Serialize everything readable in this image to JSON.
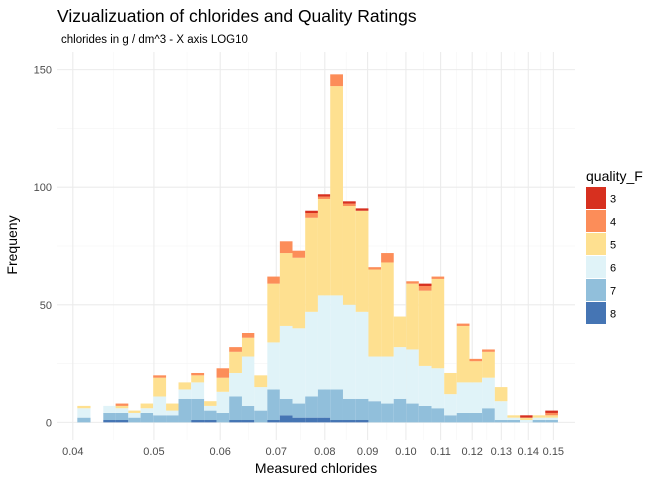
{
  "chart_data": {
    "type": "bar",
    "stacked": true,
    "title": "Vizualizuation of chlorides and Quality Ratings",
    "subtitle": "chlorides in g / dm^3 -  X axis LOG10",
    "xlabel": "Measured chlorides",
    "ylabel": "Frequeny",
    "x_scale": "log10",
    "xlim": [
      0.0383,
      0.1592
    ],
    "ylim": [
      -7.5,
      157.5
    ],
    "y_ticks": [
      0,
      50,
      100,
      150
    ],
    "x_ticks": [
      0.04,
      0.05,
      0.06,
      0.07,
      0.08,
      0.09,
      0.1,
      0.11,
      0.12,
      0.13,
      0.14,
      0.15
    ],
    "x_tick_labels": [
      "0.04",
      "0.05",
      "0.06",
      "0.07",
      "0.08",
      "0.09",
      "0.10",
      "0.11",
      "0.12",
      "0.13",
      "0.14",
      "0.15"
    ],
    "grid": true,
    "legend_title": "quality_F",
    "legend_position": "right",
    "series": [
      {
        "name": "3",
        "color": "#d7301f"
      },
      {
        "name": "4",
        "color": "#fc8d59"
      },
      {
        "name": "5",
        "color": "#fee090"
      },
      {
        "name": "6",
        "color": "#e0f3f8"
      },
      {
        "name": "7",
        "color": "#91bfdb"
      },
      {
        "name": "8",
        "color": "#4575b4"
      }
    ],
    "bins": [
      {
        "x0": 0.0405,
        "x1": 0.042,
        "counts": [
          0,
          0,
          1,
          4,
          2,
          0
        ]
      },
      {
        "x0": 0.0435,
        "x1": 0.045,
        "counts": [
          0,
          0,
          0,
          3,
          3,
          1
        ]
      },
      {
        "x0": 0.045,
        "x1": 0.0466,
        "counts": [
          0,
          1,
          1,
          2,
          3,
          1
        ]
      },
      {
        "x0": 0.0466,
        "x1": 0.0482,
        "counts": [
          0,
          0,
          1,
          2,
          2,
          0
        ]
      },
      {
        "x0": 0.0482,
        "x1": 0.0499,
        "counts": [
          0,
          0,
          2,
          2,
          4,
          0
        ]
      },
      {
        "x0": 0.0499,
        "x1": 0.0517,
        "counts": [
          0,
          1,
          8,
          8,
          3,
          0
        ]
      },
      {
        "x0": 0.0517,
        "x1": 0.0535,
        "counts": [
          0,
          0,
          3,
          2,
          3,
          0
        ]
      },
      {
        "x0": 0.0535,
        "x1": 0.0554,
        "counts": [
          0,
          0,
          3,
          4,
          10,
          0
        ]
      },
      {
        "x0": 0.0554,
        "x1": 0.0574,
        "counts": [
          0,
          1,
          3,
          7,
          9,
          1
        ]
      },
      {
        "x0": 0.0574,
        "x1": 0.0594,
        "counts": [
          0,
          0,
          2,
          2,
          4,
          1
        ]
      },
      {
        "x0": 0.0594,
        "x1": 0.0615,
        "counts": [
          0,
          4,
          6,
          9,
          4,
          0
        ]
      },
      {
        "x0": 0.0615,
        "x1": 0.0637,
        "counts": [
          0,
          2,
          9,
          10,
          10,
          1
        ]
      },
      {
        "x0": 0.0637,
        "x1": 0.0659,
        "counts": [
          0,
          2,
          8,
          21,
          6,
          1
        ]
      },
      {
        "x0": 0.0659,
        "x1": 0.0683,
        "counts": [
          0,
          0,
          5,
          10,
          5,
          0
        ]
      },
      {
        "x0": 0.0683,
        "x1": 0.0707,
        "counts": [
          0,
          3,
          25,
          20,
          13,
          1
        ]
      },
      {
        "x0": 0.0707,
        "x1": 0.0732,
        "counts": [
          0,
          5,
          31,
          31,
          7,
          3
        ]
      },
      {
        "x0": 0.0732,
        "x1": 0.0758,
        "counts": [
          0,
          3,
          30,
          32,
          6,
          2
        ]
      },
      {
        "x0": 0.0758,
        "x1": 0.0785,
        "counts": [
          1,
          2,
          40,
          36,
          9,
          2
        ]
      },
      {
        "x0": 0.0785,
        "x1": 0.0812,
        "counts": [
          1,
          1,
          41,
          40,
          12,
          2
        ]
      },
      {
        "x0": 0.0812,
        "x1": 0.0841,
        "counts": [
          0,
          5,
          89,
          40,
          13,
          1
        ]
      },
      {
        "x0": 0.0841,
        "x1": 0.0871,
        "counts": [
          1,
          1,
          42,
          40,
          9,
          1
        ]
      },
      {
        "x0": 0.0871,
        "x1": 0.0902,
        "counts": [
          1,
          0,
          43,
          37,
          9,
          1
        ]
      },
      {
        "x0": 0.0902,
        "x1": 0.0934,
        "counts": [
          0,
          1,
          37,
          19,
          9,
          0
        ]
      },
      {
        "x0": 0.0934,
        "x1": 0.0967,
        "counts": [
          0,
          4,
          40,
          20,
          8,
          0
        ]
      },
      {
        "x0": 0.0967,
        "x1": 0.1001,
        "counts": [
          0,
          0,
          13,
          22,
          10,
          0
        ]
      },
      {
        "x0": 0.1001,
        "x1": 0.1036,
        "counts": [
          0,
          1,
          28,
          23,
          8,
          0
        ]
      },
      {
        "x0": 0.1036,
        "x1": 0.1073,
        "counts": [
          1,
          2,
          32,
          17,
          7,
          0
        ]
      },
      {
        "x0": 0.1073,
        "x1": 0.1111,
        "counts": [
          0,
          1,
          38,
          17,
          6,
          0
        ]
      },
      {
        "x0": 0.1111,
        "x1": 0.115,
        "counts": [
          0,
          0,
          9,
          9,
          3,
          0
        ]
      },
      {
        "x0": 0.115,
        "x1": 0.1191,
        "counts": [
          0,
          1,
          24,
          13,
          4,
          0
        ]
      },
      {
        "x0": 0.1191,
        "x1": 0.1233,
        "counts": [
          0,
          1,
          9,
          13,
          4,
          0
        ]
      },
      {
        "x0": 0.1233,
        "x1": 0.1277,
        "counts": [
          0,
          1,
          11,
          13,
          6,
          0
        ]
      },
      {
        "x0": 0.1277,
        "x1": 0.1322,
        "counts": [
          0,
          0,
          6,
          8,
          1,
          0
        ]
      },
      {
        "x0": 0.1322,
        "x1": 0.1369,
        "counts": [
          0,
          0,
          1,
          1,
          1,
          0
        ]
      },
      {
        "x0": 0.1369,
        "x1": 0.1417,
        "counts": [
          1,
          0,
          1,
          1,
          0,
          0
        ]
      },
      {
        "x0": 0.1417,
        "x1": 0.1467,
        "counts": [
          0,
          0,
          1,
          1,
          1,
          0
        ]
      },
      {
        "x0": 0.1467,
        "x1": 0.1519,
        "counts": [
          1,
          1,
          1,
          1,
          1,
          0
        ]
      }
    ]
  }
}
